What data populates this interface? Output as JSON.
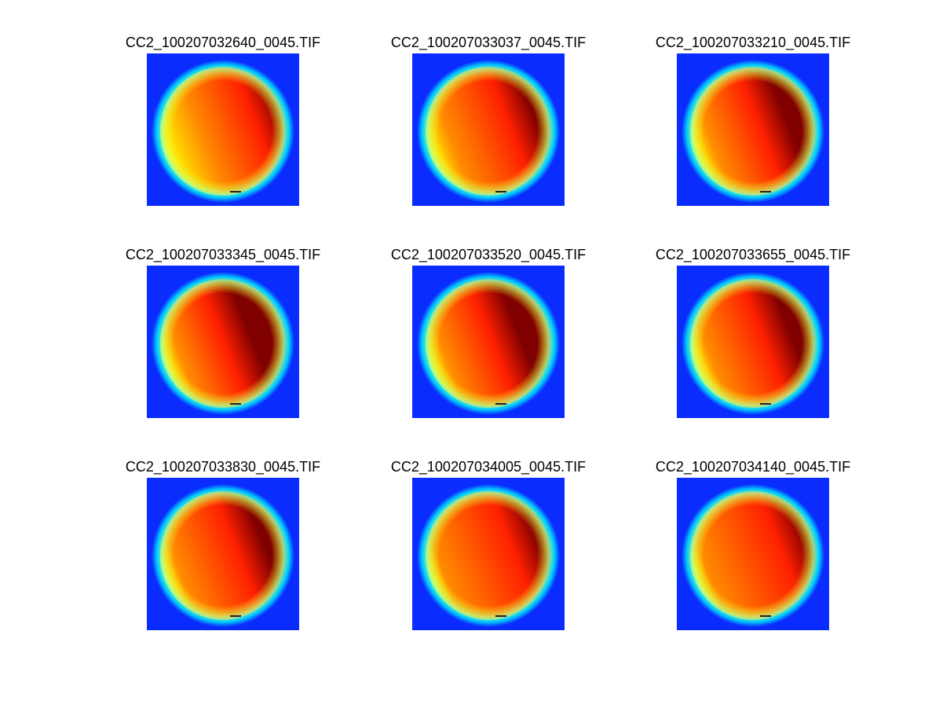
{
  "figure": {
    "background": "#ffffff",
    "panels": [
      {
        "title": "CC2_100207032640_0045.TIF",
        "hot_fraction": 0.08,
        "warm_mix": 0.15
      },
      {
        "title": "CC2_100207033037_0045.TIF",
        "hot_fraction": 0.25,
        "warm_mix": 0.55
      },
      {
        "title": "CC2_100207033210_0045.TIF",
        "hot_fraction": 0.45,
        "warm_mix": 0.65
      },
      {
        "title": "CC2_100207033345_0045.TIF",
        "hot_fraction": 0.55,
        "warm_mix": 0.7
      },
      {
        "title": "CC2_100207033520_0045.TIF",
        "hot_fraction": 0.5,
        "warm_mix": 0.7
      },
      {
        "title": "CC2_100207033655_0045.TIF",
        "hot_fraction": 0.4,
        "warm_mix": 0.7
      },
      {
        "title": "CC2_100207033830_0045.TIF",
        "hot_fraction": 0.35,
        "warm_mix": 0.75
      },
      {
        "title": "CC2_100207034005_0045.TIF",
        "hot_fraction": 0.2,
        "warm_mix": 0.8
      },
      {
        "title": "CC2_100207034140_0045.TIF",
        "hot_fraction": 0.15,
        "warm_mix": 0.8
      }
    ],
    "colors": {
      "field": "#0a2cff",
      "rim_outer": "#00c8ff",
      "rim_inner": "#7dffb0",
      "yellow": "#ffff00",
      "orange": "#ff8c00",
      "red": "#ff2000",
      "dark_red": "#800000"
    }
  }
}
